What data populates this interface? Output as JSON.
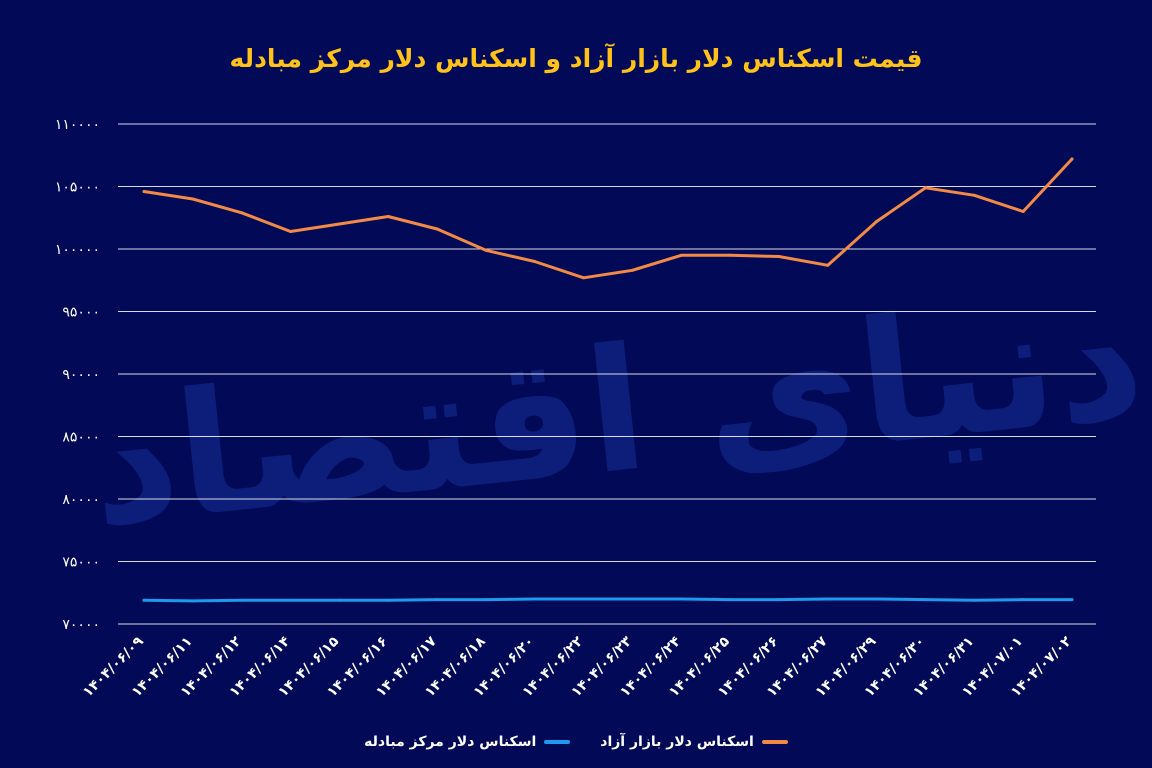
{
  "colors": {
    "background": "#020a57",
    "title": "#ffc21a",
    "grid": "#ffffff",
    "text": "#ffffff",
    "watermark": "#0c1d7a"
  },
  "watermark": {
    "text": "دنیای اقتصاد"
  },
  "chart_data": {
    "type": "line",
    "title": "قیمت اسکناس دلار بازار آزاد و اسکناس دلار مرکز مبادله",
    "xlabel": "",
    "ylabel": "",
    "ylim": [
      70000,
      110000
    ],
    "yticks": [
      70000,
      75000,
      80000,
      85000,
      90000,
      95000,
      100000,
      105000,
      110000
    ],
    "ytick_labels": [
      "۷۰۰۰۰",
      "۷۵۰۰۰",
      "۸۰۰۰۰",
      "۸۵۰۰۰",
      "۹۰۰۰۰",
      "۹۵۰۰۰",
      "۱۰۰۰۰۰",
      "۱۰۵۰۰۰",
      "۱۱۰۰۰۰"
    ],
    "grid": true,
    "legend_position": "bottom-center",
    "categories": [
      "۱۴۰۴/۰۶/۰۹",
      "۱۴۰۴/۰۶/۱۱",
      "۱۴۰۴/۰۶/۱۲",
      "۱۴۰۴/۰۶/۱۴",
      "۱۴۰۴/۰۶/۱۵",
      "۱۴۰۴/۰۶/۱۶",
      "۱۴۰۴/۰۶/۱۷",
      "۱۴۰۴/۰۶/۱۸",
      "۱۴۰۴/۰۶/۲۰",
      "۱۴۰۴/۰۶/۲۲",
      "۱۴۰۴/۰۶/۲۳",
      "۱۴۰۴/۰۶/۲۴",
      "۱۴۰۴/۰۶/۲۵",
      "۱۴۰۴/۰۶/۲۶",
      "۱۴۰۴/۰۶/۲۷",
      "۱۴۰۴/۰۶/۲۹",
      "۱۴۰۴/۰۶/۳۰",
      "۱۴۰۴/۰۶/۳۱",
      "۱۴۰۴/۰۷/۰۱",
      "۱۴۰۴/۰۷/۰۲"
    ],
    "series": [
      {
        "name": "اسکناس دلار بازار آزاد",
        "color": "#f28a45",
        "values": [
          104600,
          104000,
          102900,
          101400,
          102000,
          102600,
          101600,
          99900,
          99000,
          97700,
          98300,
          99500,
          99500,
          99400,
          98700,
          102200,
          104900,
          104300,
          103000,
          107200
        ]
      },
      {
        "name": "اسکناس دلار مرکز مبادله",
        "color": "#1a9bf0",
        "values": [
          71900,
          71850,
          71900,
          71900,
          71900,
          71900,
          71950,
          71950,
          72000,
          72000,
          72000,
          72000,
          71950,
          71950,
          72000,
          72000,
          71950,
          71900,
          71950,
          71950
        ]
      }
    ]
  }
}
